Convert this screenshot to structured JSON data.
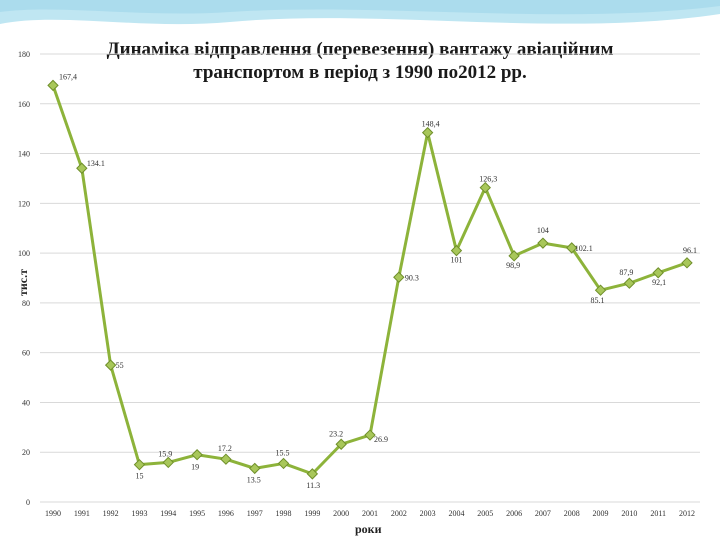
{
  "chart_data": {
    "type": "line",
    "title_line1": "Динаміка відправлення (перевезення) вантажу авіаційним",
    "title_line2": "транспортом  в період з 1990 по2012 рр.",
    "xlabel": "роки",
    "ylabel": "тис.т",
    "ylim": [
      0,
      180
    ],
    "yticks": [
      0,
      20,
      40,
      60,
      80,
      100,
      120,
      140,
      160,
      180
    ],
    "grid": true,
    "legend": "none",
    "x": [
      "1990",
      "1991",
      "1992",
      "1993",
      "1994",
      "1995",
      "1996",
      "1997",
      "1998",
      "1999",
      "2000",
      "2001",
      "2002",
      "2003",
      "2004",
      "2005",
      "2006",
      "2007",
      "2008",
      "2009",
      "2010",
      "2011",
      "2012"
    ],
    "values": [
      167.4,
      134.1,
      55,
      15,
      15.9,
      19,
      17.2,
      13.5,
      15.5,
      11.3,
      23.2,
      26.9,
      90.3,
      148.4,
      101,
      126.3,
      98.9,
      104,
      102.1,
      85.1,
      87.9,
      92.1,
      96.1
    ],
    "data_labels": [
      "167,4",
      "134.1",
      "55",
      "15",
      "15.9",
      "19",
      "17.2",
      "13.5",
      "15.5",
      "11.3",
      "23.2",
      "26.9",
      "90.3",
      "148,4",
      "101",
      "126,3",
      "98,9",
      "104",
      "102.1",
      "85.1",
      "87,9",
      "92,1",
      "96.1"
    ],
    "colors": {
      "line": "#8db33a",
      "marker": "#a8c75a",
      "marker_edge": "#6f8f2a",
      "grid": "#d9d9d9",
      "header": "#bfe6f2"
    }
  }
}
